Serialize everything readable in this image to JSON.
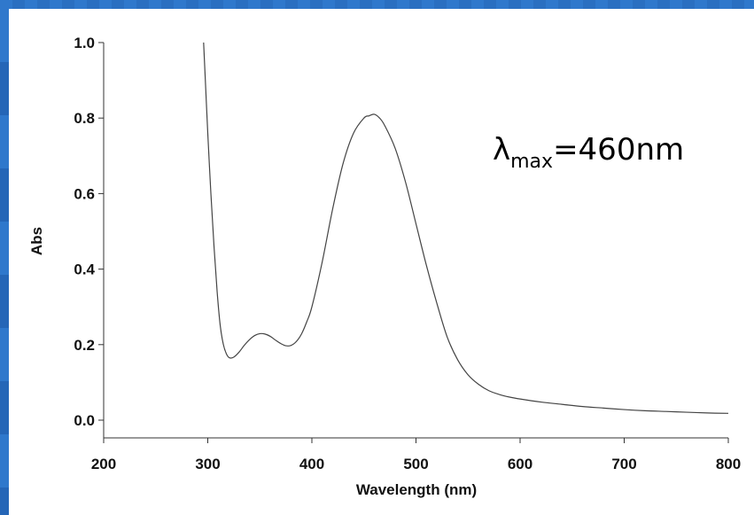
{
  "chart_data": {
    "type": "line",
    "xlabel": "Wavelength (nm)",
    "ylabel": "Abs",
    "xlim": [
      200,
      800
    ],
    "ylim": [
      0.0,
      1.0
    ],
    "x_ticks": [
      "200",
      "300",
      "400",
      "500",
      "600",
      "700",
      "800"
    ],
    "y_ticks": [
      "0.0",
      "0.2",
      "0.4",
      "0.6",
      "0.8",
      "1.0"
    ],
    "grid": false,
    "annotation": {
      "symbol": "λ",
      "subscript": "max",
      "text": "=460nm"
    },
    "series": [
      {
        "x": [
          296,
          298,
          300,
          303,
          306,
          309,
          312,
          315,
          318,
          321,
          325,
          330,
          335,
          340,
          345,
          350,
          355,
          360,
          365,
          370,
          375,
          380,
          385,
          390,
          395,
          400,
          410,
          420,
          430,
          440,
          450,
          455,
          460,
          465,
          470,
          480,
          490,
          500,
          510,
          520,
          530,
          540,
          550,
          560,
          570,
          580,
          590,
          600,
          620,
          640,
          660,
          680,
          700,
          720,
          740,
          760,
          780,
          800
        ],
        "y": [
          1.0,
          0.88,
          0.76,
          0.6,
          0.46,
          0.34,
          0.25,
          0.2,
          0.175,
          0.165,
          0.167,
          0.18,
          0.198,
          0.213,
          0.224,
          0.229,
          0.228,
          0.222,
          0.212,
          0.203,
          0.197,
          0.198,
          0.208,
          0.228,
          0.26,
          0.3,
          0.42,
          0.56,
          0.68,
          0.76,
          0.8,
          0.806,
          0.81,
          0.8,
          0.78,
          0.72,
          0.63,
          0.52,
          0.41,
          0.31,
          0.22,
          0.16,
          0.12,
          0.095,
          0.078,
          0.068,
          0.061,
          0.056,
          0.048,
          0.042,
          0.036,
          0.032,
          0.028,
          0.025,
          0.023,
          0.021,
          0.019,
          0.018
        ]
      }
    ]
  }
}
